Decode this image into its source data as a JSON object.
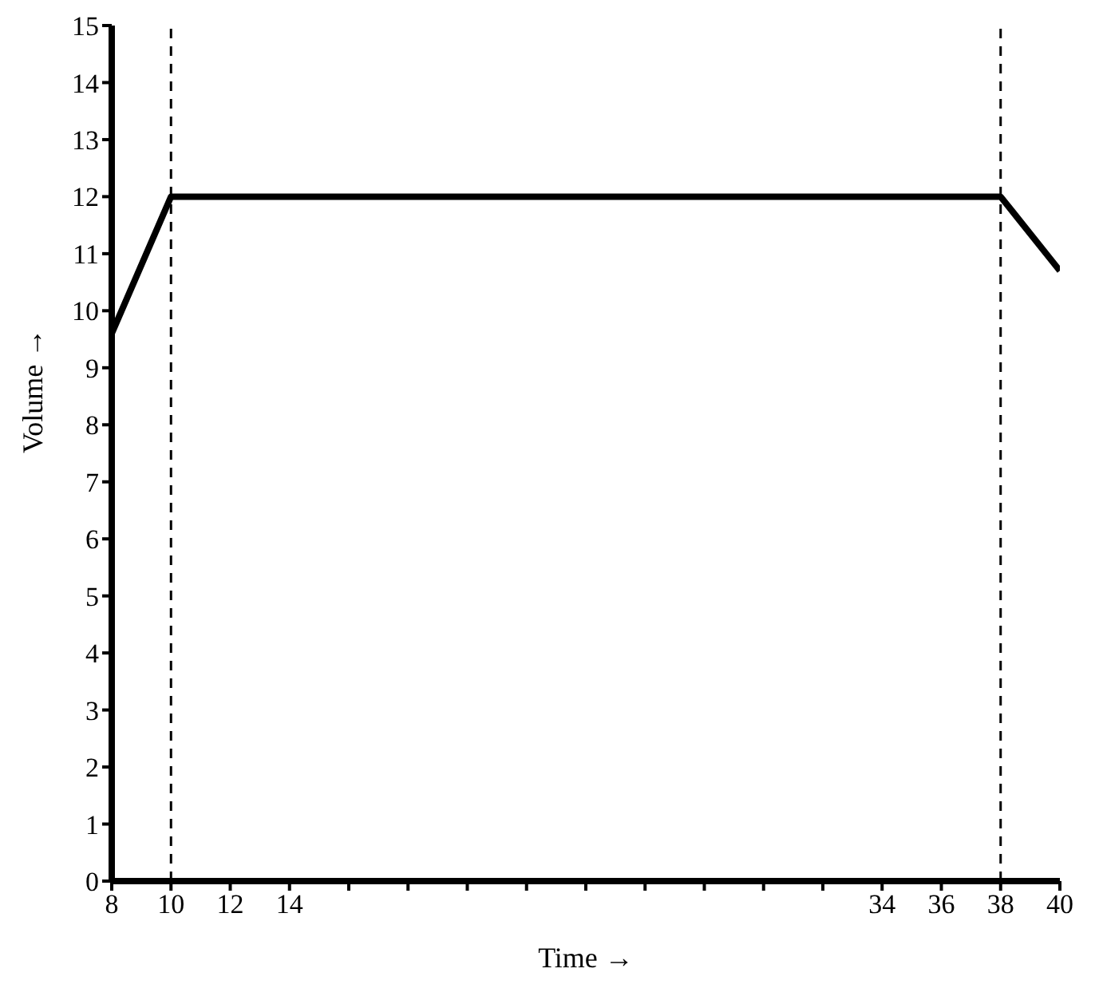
{
  "chart_data": {
    "type": "line",
    "xlabel": "Time →",
    "ylabel": "Volume →",
    "x": [
      8,
      10,
      38,
      40
    ],
    "series": [
      {
        "color": "#000000",
        "values": [
          9.6,
          12,
          12,
          10.7
        ]
      }
    ],
    "xlim": [
      8,
      40
    ],
    "xticks": [
      8,
      10,
      12,
      14,
      {
        "value": 16,
        "label": null
      },
      {
        "value": 18,
        "label": null
      },
      {
        "value": 20,
        "label": null
      },
      {
        "value": 22,
        "label": null
      },
      {
        "value": 24,
        "label": null
      },
      {
        "value": 26,
        "label": null
      },
      {
        "value": 28,
        "label": null
      },
      {
        "value": 30,
        "label": null
      },
      {
        "value": 32,
        "label": null
      },
      34,
      36,
      38,
      40
    ],
    "ylim": [
      0,
      15
    ],
    "yticks": [
      0,
      1,
      2,
      3,
      4,
      5,
      6,
      7,
      8,
      9,
      10,
      11,
      12,
      13,
      14,
      15
    ],
    "ref_lines": [
      {
        "axis": "x",
        "value": 10,
        "line_style": "dashed",
        "color": "#000000"
      },
      {
        "axis": "x",
        "value": 38,
        "line_style": "dashed",
        "color": "#000000"
      }
    ],
    "grid": false,
    "legend": false,
    "marker": "none",
    "line_style": "solid"
  }
}
